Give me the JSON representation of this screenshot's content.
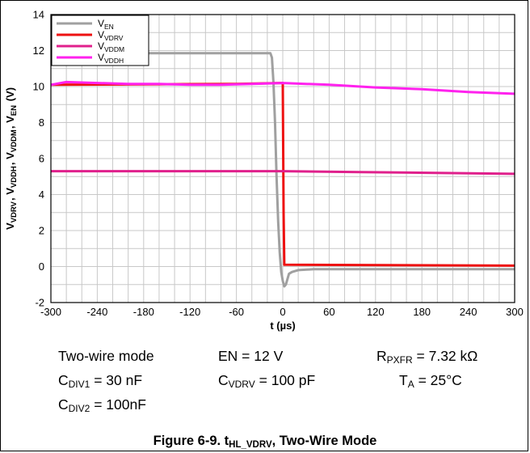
{
  "chart_data": {
    "type": "line",
    "xlabel": "t (µs)",
    "ylabel_parts": [
      {
        "t": "V",
        "s": "VDRV"
      },
      {
        "t": ", V",
        "s": "VDDH"
      },
      {
        "t": ", V",
        "s": "VDDM"
      },
      {
        "t": ", V",
        "s": "EN"
      },
      {
        "t": " (V)",
        "s": ""
      }
    ],
    "xlim": [
      -300,
      300
    ],
    "ylim": [
      -2,
      14
    ],
    "xticks": [
      -300,
      -240,
      -180,
      -120,
      -60,
      0,
      60,
      120,
      180,
      240,
      300
    ],
    "yticks": [
      -2,
      0,
      2,
      4,
      6,
      8,
      10,
      12,
      14
    ],
    "grid": true,
    "legend_position": "top-left",
    "series": [
      {
        "name": "V",
        "sub": "EN",
        "color": "#a0a0a0",
        "x": [
          -300,
          -30,
          -16,
          -14,
          -12,
          -10,
          -8,
          -6,
          -4,
          -2,
          0,
          2,
          4,
          8,
          12,
          20,
          40,
          300
        ],
        "y": [
          11.85,
          11.85,
          11.85,
          11.6,
          10.2,
          8.0,
          5.0,
          2.5,
          0.8,
          -0.3,
          -0.8,
          -1.1,
          -1.0,
          -0.4,
          -0.3,
          -0.2,
          -0.15,
          -0.15
        ]
      },
      {
        "name": "V",
        "sub": "VDRV",
        "color": "#ee1111",
        "x": [
          -300,
          -60,
          -2,
          0,
          1,
          2,
          300
        ],
        "y": [
          10.1,
          10.15,
          10.2,
          10.2,
          3.0,
          0.1,
          0.05
        ]
      },
      {
        "name": "V",
        "sub": "VDDM",
        "color": "#e0208c",
        "x": [
          -300,
          -100,
          0,
          100,
          300
        ],
        "y": [
          5.3,
          5.3,
          5.3,
          5.25,
          5.15
        ]
      },
      {
        "name": "V",
        "sub": "VDDH",
        "color": "#ff22ee",
        "x": [
          -300,
          -280,
          -240,
          -200,
          -160,
          -120,
          -80,
          -40,
          0,
          60,
          120,
          180,
          240,
          300
        ],
        "y": [
          10.1,
          10.25,
          10.2,
          10.15,
          10.15,
          10.1,
          10.1,
          10.15,
          10.2,
          10.1,
          9.95,
          9.85,
          9.7,
          9.6
        ]
      }
    ],
    "conditions": [
      [
        {
          "t": "Two-wire mode",
          "s": ""
        }
      ],
      [
        {
          "t": "EN = 12 V",
          "s": ""
        }
      ],
      [
        {
          "t": "R",
          "s": "PXFR"
        },
        {
          "t": " = 7.32 kΩ",
          "s": ""
        }
      ],
      [
        {
          "t": "C",
          "s": "DIV1"
        },
        {
          "t": " = 30 nF",
          "s": ""
        }
      ],
      [
        {
          "t": "C",
          "s": "VDRV"
        },
        {
          "t": " = 100 pF",
          "s": ""
        }
      ],
      [
        {
          "t": "T",
          "s": "A"
        },
        {
          "t": " = 25°C",
          "s": ""
        }
      ],
      [
        {
          "t": "C",
          "s": "DIV2"
        },
        {
          "t": " = 100nF",
          "s": ""
        }
      ]
    ],
    "caption_parts": [
      {
        "t": "Figure 6-9. t",
        "s": "HL_VDRV"
      },
      {
        "t": ", Two-Wire Mode",
        "s": ""
      }
    ]
  }
}
